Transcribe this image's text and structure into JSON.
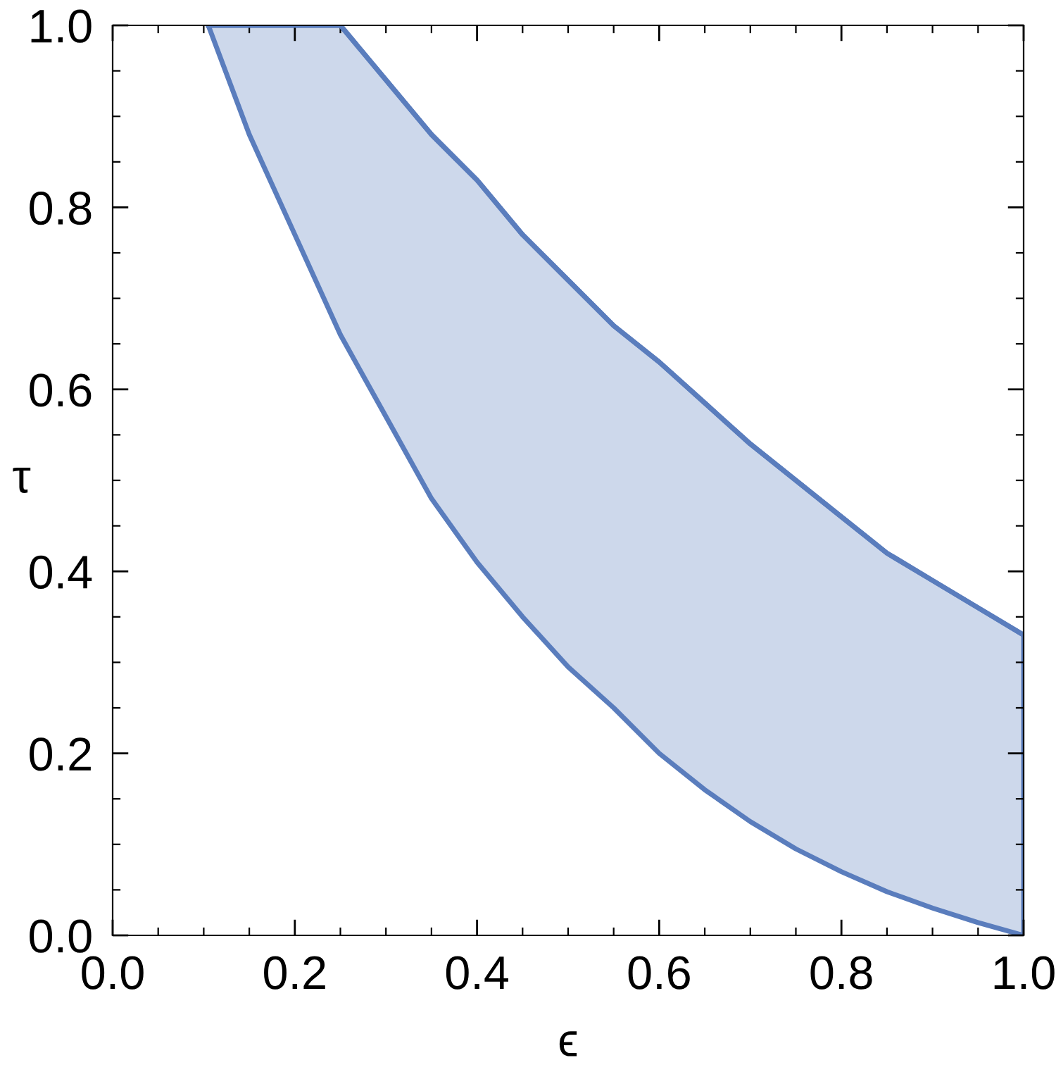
{
  "chart_data": {
    "type": "line",
    "xlabel": "ϵ",
    "ylabel": "τ",
    "x": [
      0.105,
      0.15,
      0.2,
      0.25,
      0.3,
      0.35,
      0.4,
      0.45,
      0.5,
      0.55,
      0.6,
      0.65,
      0.7,
      0.75,
      0.8,
      0.85,
      0.9,
      0.95,
      1.0
    ],
    "series": [
      {
        "color": "#5a7dbd",
        "values": [
          1.0,
          1.0,
          1.0,
          1.0,
          0.94,
          0.88,
          0.83,
          0.77,
          0.72,
          0.67,
          0.63,
          0.585,
          0.54,
          0.5,
          0.46,
          0.42,
          0.39,
          0.36,
          0.33
        ],
        "upper": [
          1.0,
          1.0,
          1.0,
          1.0,
          0.94,
          0.88,
          0.83,
          0.77,
          0.72,
          0.67,
          0.63,
          0.585,
          0.54,
          0.5,
          0.46,
          0.42,
          0.39,
          0.36,
          0.33
        ],
        "lower": [
          1.0,
          0.88,
          0.77,
          0.66,
          0.57,
          0.48,
          0.41,
          0.35,
          0.295,
          0.25,
          0.2,
          0.16,
          0.125,
          0.095,
          0.07,
          0.048,
          0.03,
          0.014,
          0.0
        ]
      }
    ],
    "xlim": [
      0,
      1
    ],
    "ylim": [
      0,
      1
    ],
    "xticks": [
      {
        "value": 0.0,
        "label": "0.0"
      },
      {
        "value": 0.05,
        "label": null
      },
      {
        "value": 0.1,
        "label": null
      },
      {
        "value": 0.15,
        "label": null
      },
      {
        "value": 0.2,
        "label": "0.2"
      },
      {
        "value": 0.25,
        "label": null
      },
      {
        "value": 0.3,
        "label": null
      },
      {
        "value": 0.35,
        "label": null
      },
      {
        "value": 0.4,
        "label": "0.4"
      },
      {
        "value": 0.45,
        "label": null
      },
      {
        "value": 0.5,
        "label": null
      },
      {
        "value": 0.55,
        "label": null
      },
      {
        "value": 0.6,
        "label": "0.6"
      },
      {
        "value": 0.65,
        "label": null
      },
      {
        "value": 0.7,
        "label": null
      },
      {
        "value": 0.75,
        "label": null
      },
      {
        "value": 0.8,
        "label": "0.8"
      },
      {
        "value": 0.85,
        "label": null
      },
      {
        "value": 0.9,
        "label": null
      },
      {
        "value": 0.95,
        "label": null
      },
      {
        "value": 1.0,
        "label": "1.0"
      }
    ],
    "yticks": [
      {
        "value": 0.0,
        "label": "0.0"
      },
      {
        "value": 0.05,
        "label": null
      },
      {
        "value": 0.1,
        "label": null
      },
      {
        "value": 0.15,
        "label": null
      },
      {
        "value": 0.2,
        "label": "0.2"
      },
      {
        "value": 0.25,
        "label": null
      },
      {
        "value": 0.3,
        "label": null
      },
      {
        "value": 0.35,
        "label": null
      },
      {
        "value": 0.4,
        "label": "0.4"
      },
      {
        "value": 0.45,
        "label": null
      },
      {
        "value": 0.5,
        "label": null
      },
      {
        "value": 0.55,
        "label": null
      },
      {
        "value": 0.6,
        "label": "0.6"
      },
      {
        "value": 0.65,
        "label": null
      },
      {
        "value": 0.7,
        "label": null
      },
      {
        "value": 0.75,
        "label": null
      },
      {
        "value": 0.8,
        "label": "0.8"
      },
      {
        "value": 0.85,
        "label": null
      },
      {
        "value": 0.9,
        "label": null
      },
      {
        "value": 0.95,
        "label": null
      },
      {
        "value": 1.0,
        "label": "1.0"
      }
    ],
    "grid": false
  }
}
